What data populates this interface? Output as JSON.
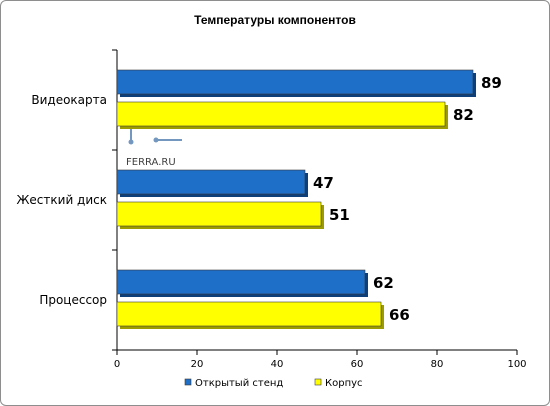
{
  "chart_data": {
    "type": "bar",
    "orientation": "horizontal",
    "title": "Температуры компонентов",
    "categories": [
      "Видеокарта",
      "Жесткий диск",
      "Процессор"
    ],
    "series": [
      {
        "name": "Открытый стенд",
        "color": "#1e6fc8",
        "values": [
          89,
          47,
          62
        ]
      },
      {
        "name": "Корпус",
        "color": "#ffff00",
        "values": [
          82,
          51,
          66
        ]
      }
    ],
    "xlim": [
      0,
      100
    ],
    "xticks": [
      0,
      20,
      40,
      60,
      80,
      100
    ],
    "grid": false,
    "legend_position": "bottom"
  },
  "watermark": {
    "text": "FERRA.RU"
  }
}
